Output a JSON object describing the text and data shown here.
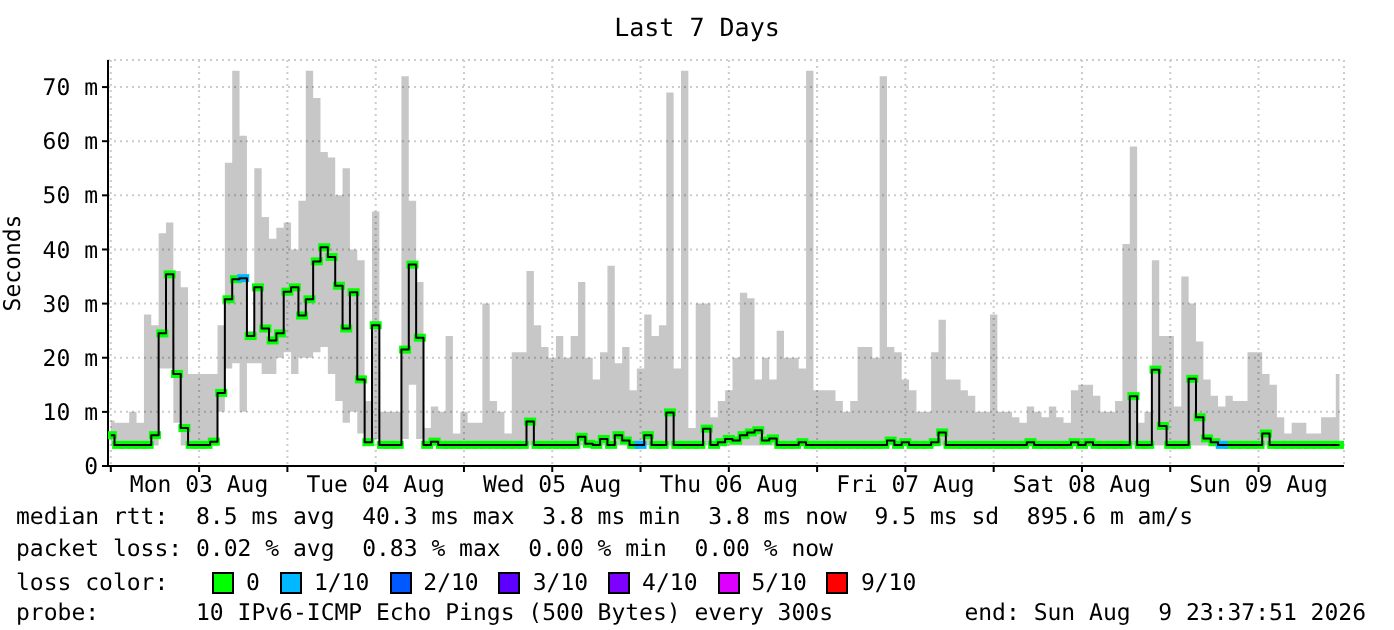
{
  "chart_data": {
    "type": "step",
    "title": "Last 7 Days",
    "ylabel": "Seconds",
    "x": [
      "2026-08-03T00:00",
      "2026-08-03T01:00",
      "2026-08-03T02:00",
      "2026-08-03T03:00",
      "2026-08-03T04:00",
      "2026-08-03T05:00",
      "2026-08-03T06:00",
      "2026-08-03T07:00",
      "2026-08-03T08:00",
      "2026-08-03T09:00",
      "2026-08-03T10:00",
      "2026-08-03T11:00",
      "2026-08-03T12:00",
      "2026-08-03T13:00",
      "2026-08-03T14:00",
      "2026-08-03T15:00",
      "2026-08-03T16:00",
      "2026-08-03T17:00",
      "2026-08-03T18:00",
      "2026-08-03T19:00",
      "2026-08-03T20:00",
      "2026-08-03T21:00",
      "2026-08-03T22:00",
      "2026-08-03T23:00",
      "2026-08-04T00:00",
      "2026-08-04T01:00",
      "2026-08-04T02:00",
      "2026-08-04T03:00",
      "2026-08-04T04:00",
      "2026-08-04T05:00",
      "2026-08-04T06:00",
      "2026-08-04T07:00",
      "2026-08-04T08:00",
      "2026-08-04T09:00",
      "2026-08-04T10:00",
      "2026-08-04T11:00",
      "2026-08-04T12:00",
      "2026-08-04T13:00",
      "2026-08-04T14:00",
      "2026-08-04T15:00",
      "2026-08-04T16:00",
      "2026-08-04T17:00",
      "2026-08-04T18:00",
      "2026-08-04T19:00",
      "2026-08-04T20:00",
      "2026-08-04T21:00",
      "2026-08-04T22:00",
      "2026-08-04T23:00",
      "2026-08-05T00:00",
      "2026-08-05T01:00",
      "2026-08-05T02:00",
      "2026-08-05T03:00",
      "2026-08-05T04:00",
      "2026-08-05T05:00",
      "2026-08-05T06:00",
      "2026-08-05T07:00",
      "2026-08-05T08:00",
      "2026-08-05T09:00",
      "2026-08-05T10:00",
      "2026-08-05T11:00",
      "2026-08-05T12:00",
      "2026-08-05T13:00",
      "2026-08-05T14:00",
      "2026-08-05T15:00",
      "2026-08-05T16:00",
      "2026-08-05T17:00",
      "2026-08-05T18:00",
      "2026-08-05T19:00",
      "2026-08-05T20:00",
      "2026-08-05T21:00",
      "2026-08-05T22:00",
      "2026-08-05T23:00",
      "2026-08-06T00:00",
      "2026-08-06T01:00",
      "2026-08-06T02:00",
      "2026-08-06T03:00",
      "2026-08-06T04:00",
      "2026-08-06T05:00",
      "2026-08-06T06:00",
      "2026-08-06T07:00",
      "2026-08-06T08:00",
      "2026-08-06T09:00",
      "2026-08-06T10:00",
      "2026-08-06T11:00",
      "2026-08-06T12:00",
      "2026-08-06T13:00",
      "2026-08-06T14:00",
      "2026-08-06T15:00",
      "2026-08-06T16:00",
      "2026-08-06T17:00",
      "2026-08-06T18:00",
      "2026-08-06T19:00",
      "2026-08-06T20:00",
      "2026-08-06T21:00",
      "2026-08-06T22:00",
      "2026-08-06T23:00",
      "2026-08-07T00:00",
      "2026-08-07T01:00",
      "2026-08-07T02:00",
      "2026-08-07T03:00",
      "2026-08-07T04:00",
      "2026-08-07T05:00",
      "2026-08-07T06:00",
      "2026-08-07T07:00",
      "2026-08-07T08:00",
      "2026-08-07T09:00",
      "2026-08-07T10:00",
      "2026-08-07T11:00",
      "2026-08-07T12:00",
      "2026-08-07T13:00",
      "2026-08-07T14:00",
      "2026-08-07T15:00",
      "2026-08-07T16:00",
      "2026-08-07T17:00",
      "2026-08-07T18:00",
      "2026-08-07T19:00",
      "2026-08-07T20:00",
      "2026-08-07T21:00",
      "2026-08-07T22:00",
      "2026-08-07T23:00",
      "2026-08-08T00:00",
      "2026-08-08T01:00",
      "2026-08-08T02:00",
      "2026-08-08T03:00",
      "2026-08-08T04:00",
      "2026-08-08T05:00",
      "2026-08-08T06:00",
      "2026-08-08T07:00",
      "2026-08-08T08:00",
      "2026-08-08T09:00",
      "2026-08-08T10:00",
      "2026-08-08T11:00",
      "2026-08-08T12:00",
      "2026-08-08T13:00",
      "2026-08-08T14:00",
      "2026-08-08T15:00",
      "2026-08-08T16:00",
      "2026-08-08T17:00",
      "2026-08-08T18:00",
      "2026-08-08T19:00",
      "2026-08-08T20:00",
      "2026-08-08T21:00",
      "2026-08-08T22:00",
      "2026-08-08T23:00",
      "2026-08-09T00:00",
      "2026-08-09T01:00",
      "2026-08-09T02:00",
      "2026-08-09T03:00",
      "2026-08-09T04:00",
      "2026-08-09T05:00",
      "2026-08-09T06:00",
      "2026-08-09T07:00",
      "2026-08-09T08:00",
      "2026-08-09T09:00",
      "2026-08-09T10:00",
      "2026-08-09T11:00",
      "2026-08-09T12:00",
      "2026-08-09T13:00",
      "2026-08-09T14:00",
      "2026-08-09T15:00",
      "2026-08-09T16:00",
      "2026-08-09T17:00",
      "2026-08-09T18:00",
      "2026-08-09T19:00",
      "2026-08-09T20:00",
      "2026-08-09T21:00",
      "2026-08-09T22:00",
      "2026-08-09T23:00"
    ],
    "series": [
      {
        "color": "#000000",
        "marker": "none",
        "values": [
          5.7,
          3.9,
          3.9,
          3.9,
          3.9,
          3.9,
          5.7,
          24.5,
          35.4,
          17,
          7,
          3.9,
          3.9,
          3.9,
          4.5,
          13.5,
          30.8,
          34.5,
          34.7,
          24,
          33,
          25.4,
          23.2,
          24.5,
          32.2,
          33,
          27.8,
          30.8,
          37.8,
          40.4,
          38.6,
          33.3,
          25.4,
          32.1,
          16,
          4.4,
          26,
          3.9,
          3.9,
          3.9,
          21.5,
          37.2,
          23.7,
          3.9,
          4.5,
          3.9,
          3.9,
          3.9,
          3.9,
          3.9,
          3.9,
          3.9,
          3.9,
          3.9,
          3.9,
          3.9,
          3.9,
          8.2,
          3.9,
          3.9,
          3.9,
          3.9,
          3.9,
          3.9,
          5.4,
          4.1,
          3.9,
          5,
          3.9,
          5.7,
          4.7,
          3.9,
          3.9,
          5.7,
          3.9,
          3.9,
          9.9,
          3.9,
          3.9,
          3.9,
          3.9,
          6.9,
          3.9,
          4.4,
          5,
          4.7,
          5.7,
          6.2,
          6.6,
          4.7,
          5.1,
          3.9,
          3.9,
          3.9,
          4.4,
          3.9,
          3.9,
          3.9,
          3.9,
          3.9,
          3.9,
          3.9,
          3.9,
          3.9,
          3.9,
          3.9,
          4.7,
          3.9,
          4.4,
          3.9,
          3.9,
          3.9,
          4.4,
          6.2,
          3.9,
          3.9,
          3.9,
          3.9,
          3.9,
          3.9,
          3.9,
          3.9,
          3.9,
          3.9,
          3.9,
          4.4,
          3.9,
          3.9,
          3.9,
          3.9,
          3.9,
          4.4,
          3.9,
          4.4,
          3.9,
          3.9,
          3.9,
          3.9,
          3.9,
          12.9,
          3.9,
          3.9,
          17.8,
          7.4,
          3.9,
          3.9,
          3.9,
          16.1,
          9,
          5.1,
          4.4,
          3.9,
          3.9,
          3.9,
          3.9,
          3.9,
          3.9,
          6,
          3.9,
          3.9,
          3.9,
          3.9,
          3.9,
          3.9,
          3.9,
          3.9,
          3.9,
          3.9
        ],
        "lower": [
          3.8,
          3.8,
          3.8,
          3.8,
          3.8,
          3.8,
          3.8,
          18,
          18,
          8,
          3.8,
          3.8,
          3.8,
          3.8,
          3.8,
          10,
          18,
          19,
          10,
          19,
          19,
          17,
          17,
          20,
          21,
          17,
          20,
          20,
          21,
          22,
          17,
          12,
          8,
          10,
          6,
          3.8,
          5,
          3.8,
          3.8,
          3.8,
          5,
          15,
          5,
          3.8,
          3.8,
          3.8,
          3.8,
          3.8,
          3.8,
          3.8,
          3.8,
          3.8,
          3.8,
          3.8,
          3.8,
          3.8,
          3.8,
          3.8,
          3.8,
          3.8,
          3.8,
          3.8,
          3.8,
          3.8,
          3.8,
          3.8,
          3.8,
          3.8,
          3.8,
          3.8,
          3.8,
          3.8,
          3.8,
          3.8,
          3.8,
          3.8,
          3.8,
          3.8,
          3.8,
          3.8,
          3.8,
          3.8,
          3.8,
          3.8,
          3.8,
          3.8,
          3.8,
          3.8,
          3.8,
          3.8,
          3.8,
          3.8,
          3.8,
          3.8,
          3.8,
          3.8,
          3.8,
          3.8,
          3.8,
          3.8,
          3.8,
          3.8,
          3.8,
          3.8,
          3.8,
          3.8,
          3.8,
          3.8,
          3.8,
          3.8,
          3.8,
          3.8,
          3.8,
          3.8,
          3.8,
          3.8,
          3.8,
          3.8,
          3.8,
          3.8,
          3.8,
          3.8,
          3.8,
          3.8,
          3.8,
          3.8,
          3.8,
          3.8,
          3.8,
          3.8,
          3.8,
          3.8,
          3.8,
          3.8,
          3.8,
          3.8,
          3.8,
          3.8,
          3.8,
          3.8,
          3.8,
          3.8,
          3.8,
          3.8,
          3.8,
          3.8,
          3.8,
          3.8,
          3.8,
          3.8,
          3.8,
          3.8,
          3.8,
          3.8,
          3.8,
          3.8,
          3.8,
          3.8,
          3.8,
          3.8,
          3.8,
          3.8,
          3.8,
          3.8,
          3.8,
          3.8,
          3.8,
          3.8
        ],
        "upper": [
          8.4,
          8,
          8,
          10,
          8,
          28,
          26,
          43,
          45,
          36,
          33,
          17,
          17,
          17,
          17,
          26,
          56,
          73,
          61,
          25,
          55,
          46,
          42,
          44,
          45,
          40,
          49,
          73,
          68,
          58,
          57,
          50,
          55,
          40,
          38,
          12,
          47,
          10,
          10,
          10,
          72,
          49,
          34,
          7,
          11,
          10,
          24,
          6,
          10,
          8,
          8,
          30,
          12,
          10,
          6,
          21,
          21,
          36,
          26,
          22,
          20,
          24,
          20,
          24,
          34,
          20,
          16,
          21,
          37,
          19,
          22,
          14,
          18,
          28,
          24,
          26,
          69,
          18,
          73,
          7,
          30,
          30,
          9,
          12,
          14,
          20,
          32,
          31,
          16,
          20,
          16,
          25,
          20,
          20,
          18,
          73,
          14,
          14,
          14,
          12,
          10,
          12,
          22,
          22,
          20,
          72,
          22,
          21,
          16,
          14,
          10,
          10,
          21,
          27,
          16,
          16,
          14,
          13,
          10,
          10,
          28,
          10,
          10,
          9,
          8,
          11,
          10,
          9,
          11,
          9,
          8,
          14,
          15,
          15,
          13,
          10,
          10,
          12,
          41,
          59,
          8,
          10,
          38,
          24,
          24,
          11,
          35,
          30,
          23,
          16,
          13,
          11,
          13,
          12,
          12,
          21,
          21,
          17,
          15,
          9,
          6,
          8,
          8,
          6,
          6,
          9,
          9,
          17
        ]
      },
      {
        "type": "scatter",
        "name": "0",
        "color": "#00ff00",
        "values": [
          5.7,
          3.9,
          3.9,
          3.9,
          3.9,
          3.9,
          5.7,
          24.5,
          35.4,
          17,
          7,
          3.9,
          3.9,
          3.9,
          4.5,
          13.5,
          30.8,
          34.5,
          null,
          24,
          33,
          25.4,
          23.2,
          24.5,
          32.2,
          33,
          27.8,
          30.8,
          37.8,
          40.4,
          38.6,
          33.3,
          25.4,
          32.1,
          16,
          4.4,
          26,
          3.9,
          3.9,
          3.9,
          21.5,
          37.2,
          23.7,
          3.9,
          4.5,
          3.9,
          3.9,
          3.9,
          3.9,
          3.9,
          3.9,
          3.9,
          3.9,
          3.9,
          3.9,
          3.9,
          3.9,
          8.2,
          3.9,
          3.9,
          3.9,
          3.9,
          3.9,
          3.9,
          5.4,
          4.1,
          3.9,
          5,
          3.9,
          5.7,
          4.7,
          3.9,
          null,
          5.7,
          3.9,
          3.9,
          9.9,
          3.9,
          3.9,
          3.9,
          3.9,
          6.9,
          3.9,
          4.4,
          5,
          4.7,
          5.7,
          6.2,
          6.6,
          4.7,
          5.1,
          3.9,
          3.9,
          3.9,
          4.4,
          3.9,
          3.9,
          3.9,
          3.9,
          3.9,
          3.9,
          3.9,
          3.9,
          3.9,
          3.9,
          3.9,
          4.7,
          3.9,
          4.4,
          3.9,
          3.9,
          3.9,
          4.4,
          6.2,
          3.9,
          3.9,
          3.9,
          3.9,
          3.9,
          3.9,
          3.9,
          3.9,
          3.9,
          3.9,
          3.9,
          4.4,
          3.9,
          3.9,
          3.9,
          3.9,
          3.9,
          4.4,
          3.9,
          4.4,
          3.9,
          3.9,
          3.9,
          3.9,
          3.9,
          12.9,
          3.9,
          3.9,
          17.8,
          7.4,
          3.9,
          3.9,
          3.9,
          16.1,
          9,
          5.1,
          4.4,
          null,
          3.9,
          3.9,
          3.9,
          3.9,
          3.9,
          6,
          3.9,
          3.9,
          3.9,
          3.9,
          3.9,
          3.9,
          3.9,
          3.9,
          3.9,
          3.9
        ]
      },
      {
        "type": "scatter",
        "name": "1/10",
        "color": "#00b8ff",
        "x": [
          "2026-08-03T18:00",
          "2026-08-06T00:00",
          "2026-08-09T07:00"
        ],
        "values": [
          34.7,
          3.9,
          3.9
        ]
      },
      {
        "type": "scatter",
        "name": "2/10",
        "color": "#0059ff",
        "values": [
          null,
          null,
          null,
          null,
          null,
          null,
          null,
          null,
          null,
          null,
          null,
          null,
          null,
          null,
          null,
          null,
          null,
          null,
          null,
          null,
          null,
          null,
          null,
          null,
          null,
          null,
          null,
          null,
          null,
          null,
          null,
          null,
          null,
          null,
          null,
          null,
          null,
          null,
          null,
          null,
          null,
          null,
          null,
          null,
          null,
          null,
          null,
          null,
          null,
          null,
          null,
          null,
          null,
          null,
          null,
          null,
          null,
          null,
          null,
          null,
          null,
          null,
          null,
          null,
          null,
          null,
          null,
          null,
          null,
          null,
          null,
          null,
          null,
          null,
          null,
          null,
          null,
          null,
          null,
          null,
          null,
          null,
          null,
          null,
          null,
          null,
          null,
          null,
          null,
          null,
          null,
          null,
          null,
          null,
          null,
          null,
          null,
          null,
          null,
          null,
          null,
          null,
          null,
          null,
          null,
          null,
          null,
          null,
          null,
          null,
          null,
          null,
          null,
          null,
          null,
          null,
          null,
          null,
          null,
          null,
          null,
          null,
          null,
          null,
          null,
          null,
          null,
          null,
          null,
          null,
          null,
          null,
          null,
          null,
          null,
          null,
          null,
          null,
          null,
          null,
          null,
          null,
          null,
          null,
          null,
          null,
          null,
          null,
          null,
          null,
          null,
          null,
          null,
          null,
          null,
          null,
          null,
          null,
          null,
          null,
          null,
          null,
          null,
          null,
          null,
          null,
          null,
          null
        ]
      },
      {
        "type": "scatter",
        "name": "3/10",
        "color": "#5e00ff",
        "values": [
          null,
          null,
          null,
          null,
          null,
          null,
          null,
          null,
          null,
          null,
          null,
          null,
          null,
          null,
          null,
          null,
          null,
          null,
          null,
          null,
          null,
          null,
          null,
          null,
          null,
          null,
          null,
          null,
          null,
          null,
          null,
          null,
          null,
          null,
          null,
          null,
          null,
          null,
          null,
          null,
          null,
          null,
          null,
          null,
          null,
          null,
          null,
          null,
          null,
          null,
          null,
          null,
          null,
          null,
          null,
          null,
          null,
          null,
          null,
          null,
          null,
          null,
          null,
          null,
          null,
          null,
          null,
          null,
          null,
          null,
          null,
          null,
          null,
          null,
          null,
          null,
          null,
          null,
          null,
          null,
          null,
          null,
          null,
          null,
          null,
          null,
          null,
          null,
          null,
          null,
          null,
          null,
          null,
          null,
          null,
          null,
          null,
          null,
          null,
          null,
          null,
          null,
          null,
          null,
          null,
          null,
          null,
          null,
          null,
          null,
          null,
          null,
          null,
          null,
          null,
          null,
          null,
          null,
          null,
          null,
          null,
          null,
          null,
          null,
          null,
          null,
          null,
          null,
          null,
          null,
          null,
          null,
          null,
          null,
          null,
          null,
          null,
          null,
          null,
          null,
          null,
          null,
          null,
          null,
          null,
          null,
          null,
          null,
          null,
          null,
          null,
          null,
          null,
          null,
          null,
          null,
          null,
          null,
          null,
          null,
          null,
          null,
          null,
          null,
          null,
          null,
          null,
          null
        ]
      },
      {
        "type": "scatter",
        "name": "4/10",
        "color": "#7e00ff",
        "values": [
          null,
          null,
          null,
          null,
          null,
          null,
          null,
          null,
          null,
          null,
          null,
          null,
          null,
          null,
          null,
          null,
          null,
          null,
          null,
          null,
          null,
          null,
          null,
          null,
          null,
          null,
          null,
          null,
          null,
          null,
          null,
          null,
          null,
          null,
          null,
          null,
          null,
          null,
          null,
          null,
          null,
          null,
          null,
          null,
          null,
          null,
          null,
          null,
          null,
          null,
          null,
          null,
          null,
          null,
          null,
          null,
          null,
          null,
          null,
          null,
          null,
          null,
          null,
          null,
          null,
          null,
          null,
          null,
          null,
          null,
          null,
          null,
          null,
          null,
          null,
          null,
          null,
          null,
          null,
          null,
          null,
          null,
          null,
          null,
          null,
          null,
          null,
          null,
          null,
          null,
          null,
          null,
          null,
          null,
          null,
          null,
          null,
          null,
          null,
          null,
          null,
          null,
          null,
          null,
          null,
          null,
          null,
          null,
          null,
          null,
          null,
          null,
          null,
          null,
          null,
          null,
          null,
          null,
          null,
          null,
          null,
          null,
          null,
          null,
          null,
          null,
          null,
          null,
          null,
          null,
          null,
          null,
          null,
          null,
          null,
          null,
          null,
          null,
          null,
          null,
          null,
          null,
          null,
          null,
          null,
          null,
          null,
          null,
          null,
          null,
          null,
          null,
          null,
          null,
          null,
          null,
          null,
          null,
          null,
          null,
          null,
          null,
          null,
          null,
          null,
          null,
          null,
          null
        ]
      },
      {
        "type": "scatter",
        "name": "5/10",
        "color": "#dd00ff",
        "values": [
          null,
          null,
          null,
          null,
          null,
          null,
          null,
          null,
          null,
          null,
          null,
          null,
          null,
          null,
          null,
          null,
          null,
          null,
          null,
          null,
          null,
          null,
          null,
          null,
          null,
          null,
          null,
          null,
          null,
          null,
          null,
          null,
          null,
          null,
          null,
          null,
          null,
          null,
          null,
          null,
          null,
          null,
          null,
          null,
          null,
          null,
          null,
          null,
          null,
          null,
          null,
          null,
          null,
          null,
          null,
          null,
          null,
          null,
          null,
          null,
          null,
          null,
          null,
          null,
          null,
          null,
          null,
          null,
          null,
          null,
          null,
          null,
          null,
          null,
          null,
          null,
          null,
          null,
          null,
          null,
          null,
          null,
          null,
          null,
          null,
          null,
          null,
          null,
          null,
          null,
          null,
          null,
          null,
          null,
          null,
          null,
          null,
          null,
          null,
          null,
          null,
          null,
          null,
          null,
          null,
          null,
          null,
          null,
          null,
          null,
          null,
          null,
          null,
          null,
          null,
          null,
          null,
          null,
          null,
          null,
          null,
          null,
          null,
          null,
          null,
          null,
          null,
          null,
          null,
          null,
          null,
          null,
          null,
          null,
          null,
          null,
          null,
          null,
          null,
          null,
          null,
          null,
          null,
          null,
          null,
          null,
          null,
          null,
          null,
          null,
          null,
          null,
          null,
          null,
          null,
          null,
          null,
          null,
          null,
          null,
          null,
          null,
          null,
          null,
          null,
          null,
          null,
          null
        ]
      },
      {
        "type": "scatter",
        "name": "9/10",
        "color": "#ff0000",
        "values": [
          null,
          null,
          null,
          null,
          null,
          null,
          null,
          null,
          null,
          null,
          null,
          null,
          null,
          null,
          null,
          null,
          null,
          null,
          null,
          null,
          null,
          null,
          null,
          null,
          null,
          null,
          null,
          null,
          null,
          null,
          null,
          null,
          null,
          null,
          null,
          null,
          null,
          null,
          null,
          null,
          null,
          null,
          null,
          null,
          null,
          null,
          null,
          null,
          null,
          null,
          null,
          null,
          null,
          null,
          null,
          null,
          null,
          null,
          null,
          null,
          null,
          null,
          null,
          null,
          null,
          null,
          null,
          null,
          null,
          null,
          null,
          null,
          null,
          null,
          null,
          null,
          null,
          null,
          null,
          null,
          null,
          null,
          null,
          null,
          null,
          null,
          null,
          null,
          null,
          null,
          null,
          null,
          null,
          null,
          null,
          null,
          null,
          null,
          null,
          null,
          null,
          null,
          null,
          null,
          null,
          null,
          null,
          null,
          null,
          null,
          null,
          null,
          null,
          null,
          null,
          null,
          null,
          null,
          null,
          null,
          null,
          null,
          null,
          null,
          null,
          null,
          null,
          null,
          null,
          null,
          null,
          null,
          null,
          null,
          null,
          null,
          null,
          null,
          null,
          null,
          null,
          null,
          null,
          null,
          null,
          null,
          null,
          null,
          null,
          null,
          null,
          null,
          null,
          null,
          null,
          null,
          null,
          null,
          null,
          null,
          null,
          null,
          null,
          null,
          null,
          null,
          null,
          null
        ]
      }
    ],
    "xlim": [
      "2026-08-02T23:37",
      "2026-08-09T23:37"
    ],
    "xticks": [
      {
        "value": "2026-08-03T00:00",
        "label": null
      },
      {
        "value": "2026-08-03T12:00",
        "label": "Mon 03 Aug"
      },
      {
        "value": "2026-08-04T00:00",
        "label": null
      },
      {
        "value": "2026-08-04T12:00",
        "label": "Tue 04 Aug"
      },
      {
        "value": "2026-08-05T00:00",
        "label": null
      },
      {
        "value": "2026-08-05T12:00",
        "label": "Wed 05 Aug"
      },
      {
        "value": "2026-08-06T00:00",
        "label": null
      },
      {
        "value": "2026-08-06T12:00",
        "label": "Thu 06 Aug"
      },
      {
        "value": "2026-08-07T00:00",
        "label": null
      },
      {
        "value": "2026-08-07T12:00",
        "label": "Fri 07 Aug"
      },
      {
        "value": "2026-08-08T00:00",
        "label": null
      },
      {
        "value": "2026-08-08T12:00",
        "label": "Sat 08 Aug"
      },
      {
        "value": "2026-08-09T00:00",
        "label": null
      },
      {
        "value": "2026-08-09T12:00",
        "label": "Sun 09 Aug"
      }
    ],
    "ylim": [
      0,
      75
    ],
    "yticks": [
      0,
      {
        "value": 10,
        "label": "10 m"
      },
      {
        "value": 20,
        "label": "20 m"
      },
      {
        "value": 30,
        "label": "30 m"
      },
      {
        "value": 40,
        "label": "40 m"
      },
      {
        "value": 50,
        "label": "50 m"
      },
      {
        "value": 60,
        "label": "60 m"
      },
      {
        "value": 70,
        "label": "70 m"
      }
    ],
    "grid": true,
    "marker": "square",
    "legend": "bottom",
    "legend_title": "loss color:",
    "annotations": [
      "median rtt:  8.5 ms avg  40.3 ms max  3.8 ms min  3.8 ms now  9.5 ms sd  895.6 m am/s",
      "packet loss: 0.02 % avg  0.83 % max  0.00 % min  0.00 % now",
      "probe:       10 IPv6-ICMP Echo Pings (500 Bytes) every 300s",
      "end: Sun Aug  9 23:37:51 2026"
    ]
  }
}
